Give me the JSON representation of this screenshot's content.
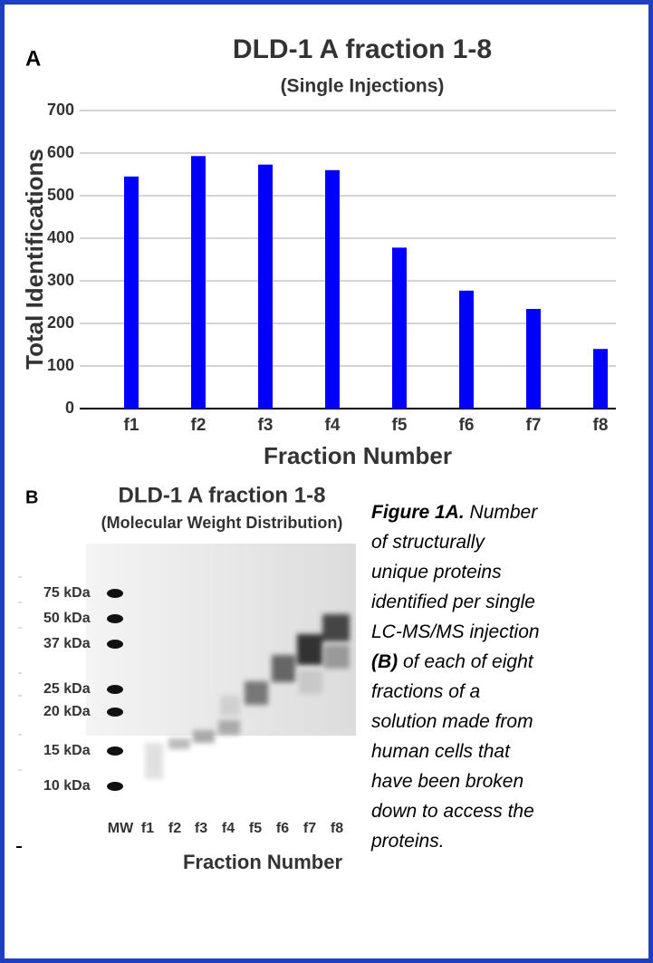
{
  "chart_data": {
    "type": "bar",
    "panel_label": "A",
    "title": "DLD-1 A fraction 1-8",
    "subtitle": "(Single Injections)",
    "y_label": "Total Identifications",
    "x_label": "Fraction Number",
    "categories": [
      "f1",
      "f2",
      "f3",
      "f4",
      "f5",
      "f6",
      "f7",
      "f8"
    ],
    "values": [
      545,
      593,
      573,
      560,
      378,
      277,
      234,
      140
    ],
    "color": "#0000ff",
    "ylim": [
      0,
      700
    ],
    "yticks": [
      0,
      100,
      200,
      300,
      400,
      500,
      600,
      700
    ],
    "grid": true
  },
  "panel_b": {
    "panel_label": "B",
    "title": "DLD-1 A fraction 1-8",
    "subtitle": "(Molecular Weight Distribution)",
    "markers": [
      "75 kDa",
      "50 kDa",
      "37 kDa",
      "25 kDa",
      "20 kDa",
      "15 kDa",
      "10 kDa"
    ],
    "lane_labels": [
      "MW",
      "f1",
      "f2",
      "f3",
      "f4",
      "f5",
      "f6",
      "f7",
      "f8"
    ],
    "x_label": "Fraction Number"
  },
  "caption": {
    "figure_label": "Figure 1A.",
    "line_1_rest": " Number",
    "lines_a": [
      "of structurally",
      "unique proteins",
      "identified per single",
      "LC-MS/MS injection"
    ],
    "b_label": "(B)",
    "b_rest": " of each of eight",
    "lines_b": [
      "fractions of a",
      "solution made from",
      "human cells that",
      "have been broken",
      "down to access the",
      "proteins."
    ]
  }
}
